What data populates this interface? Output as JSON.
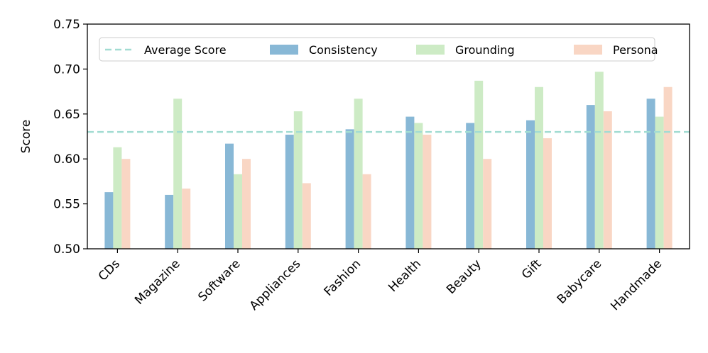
{
  "chart_data": {
    "type": "bar",
    "title": "",
    "xlabel": "",
    "ylabel": "Score",
    "ylim": [
      0.5,
      0.75
    ],
    "yticks": [
      "0.50",
      "0.55",
      "0.60",
      "0.65",
      "0.70",
      "0.75"
    ],
    "categories": [
      "CDs",
      "Magazine",
      "Software",
      "Appliances",
      "Fashion",
      "Health",
      "Beauty",
      "Gift",
      "Babycare",
      "Handmade"
    ],
    "series": [
      {
        "name": "Consistency",
        "color": "#88b8d6",
        "values": [
          0.563,
          0.56,
          0.617,
          0.627,
          0.633,
          0.647,
          0.64,
          0.643,
          0.66,
          0.667
        ]
      },
      {
        "name": "Grounding",
        "color": "#cdebc5",
        "values": [
          0.613,
          0.667,
          0.583,
          0.653,
          0.667,
          0.64,
          0.687,
          0.68,
          0.697,
          0.647
        ]
      },
      {
        "name": "Persona",
        "color": "#f9d6c4",
        "values": [
          0.6,
          0.567,
          0.6,
          0.573,
          0.583,
          0.627,
          0.6,
          0.623,
          0.653,
          0.68
        ]
      }
    ],
    "reference_line": {
      "name": "Average Score",
      "value": 0.63,
      "color": "#a2dcd2",
      "style": "dashed"
    },
    "legend": {
      "position": "top",
      "entries": [
        "Average Score",
        "Consistency",
        "Grounding",
        "Persona"
      ]
    },
    "grid": false
  }
}
